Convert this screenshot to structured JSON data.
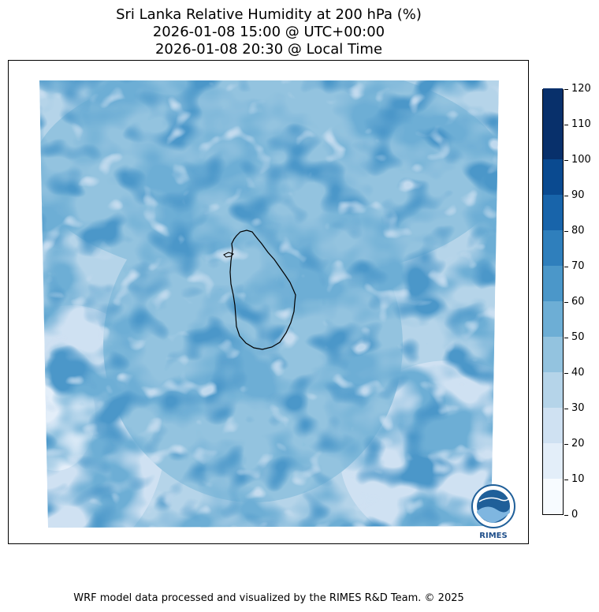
{
  "title": {
    "line1": "Sri Lanka Relative Humidity at 200 hPa (%)",
    "line2": "2026-01-08 15:00 @ UTC+00:00",
    "line3": "2026-01-08 20:30 @ Local Time"
  },
  "colorbar": {
    "levels": [
      0,
      10,
      20,
      30,
      40,
      50,
      60,
      70,
      80,
      90,
      100,
      110,
      120
    ],
    "colors": [
      "#f7fbff",
      "#e3eef9",
      "#cfe1f2",
      "#b5d4e9",
      "#93c3df",
      "#6daed5",
      "#4b97c9",
      "#2f7fbc",
      "#1864aa",
      "#0a4a90",
      "#08306b",
      "#08306b"
    ]
  },
  "logo": {
    "text": "RIMES"
  },
  "footer": {
    "text": "WRF model data processed and visualized by the RIMES R&D Team. © 2025"
  }
}
